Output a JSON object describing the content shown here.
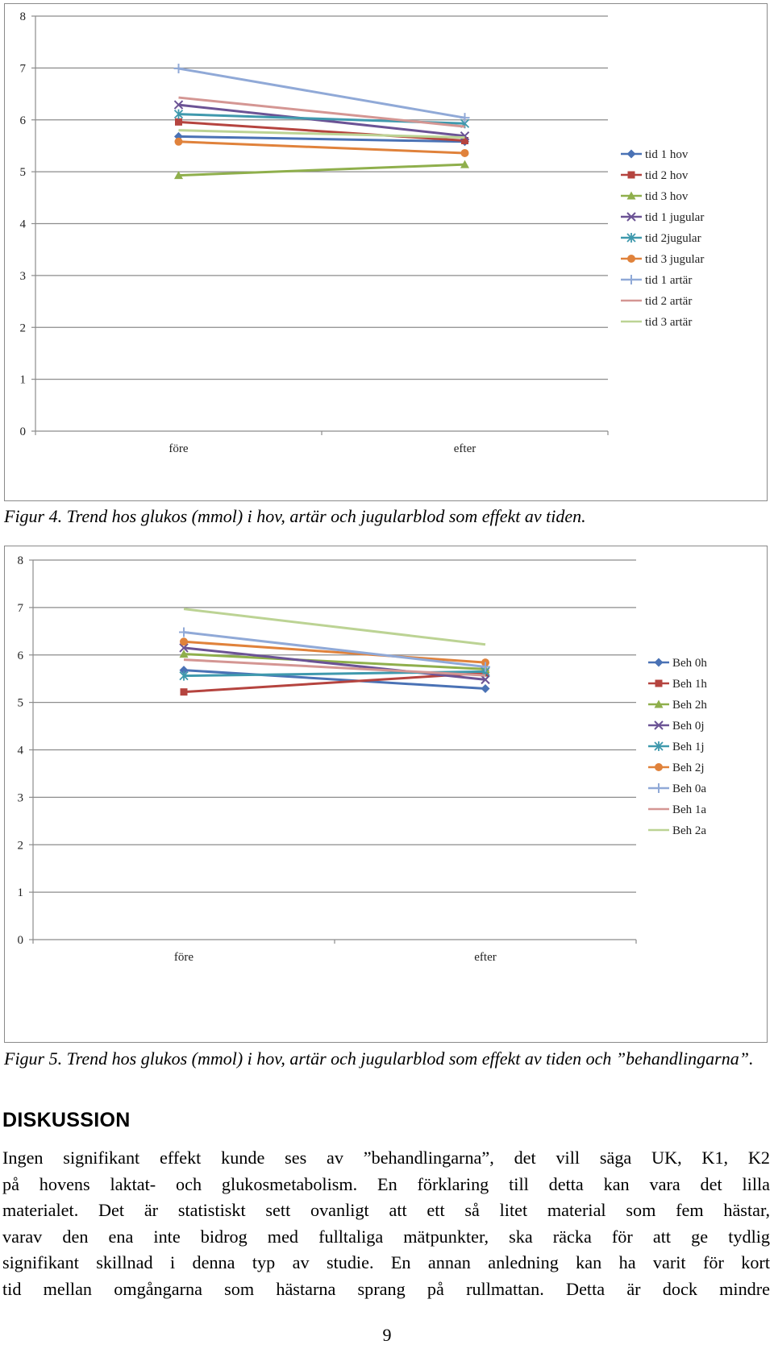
{
  "chart_data": [
    {
      "type": "line",
      "categories": [
        "före",
        "efter"
      ],
      "ylim": [
        0,
        8
      ],
      "yticks": [
        0,
        1,
        2,
        3,
        4,
        5,
        6,
        7,
        8
      ],
      "grid": true,
      "legend_position": "right",
      "series": [
        {
          "name": "tid 1 hov",
          "values": [
            5.68,
            5.58
          ],
          "color": "#4a72b5",
          "marker": "diamond"
        },
        {
          "name": "tid 2 hov",
          "values": [
            5.96,
            5.6
          ],
          "color": "#b5443f",
          "marker": "square"
        },
        {
          "name": "tid 3 hov",
          "values": [
            4.93,
            5.14
          ],
          "color": "#8faf4c",
          "marker": "triangle"
        },
        {
          "name": "tid 1 jugular",
          "values": [
            6.29,
            5.69
          ],
          "color": "#6b5395",
          "marker": "x"
        },
        {
          "name": "tid 2jugular",
          "values": [
            6.11,
            5.93
          ],
          "color": "#3f99ad",
          "marker": "star"
        },
        {
          "name": "tid 3 jugular",
          "values": [
            5.58,
            5.36
          ],
          "color": "#e0823b",
          "marker": "circle"
        },
        {
          "name": "tid 1 artär",
          "values": [
            6.99,
            6.04
          ],
          "color": "#90a9d7",
          "marker": "plus"
        },
        {
          "name": "tid 2 artär",
          "values": [
            6.43,
            5.87
          ],
          "color": "#d49693",
          "marker": "none"
        },
        {
          "name": "tid 3 artär",
          "values": [
            5.8,
            5.66
          ],
          "color": "#bcd394",
          "marker": "none"
        }
      ]
    },
    {
      "type": "line",
      "categories": [
        "före",
        "efter"
      ],
      "ylim": [
        0,
        8
      ],
      "yticks": [
        0,
        1,
        2,
        3,
        4,
        5,
        6,
        7,
        8
      ],
      "grid": true,
      "legend_position": "right",
      "series": [
        {
          "name": "Beh 0h",
          "values": [
            5.68,
            5.29
          ],
          "color": "#4a72b5",
          "marker": "diamond"
        },
        {
          "name": "Beh 1h",
          "values": [
            5.22,
            5.62
          ],
          "color": "#b5443f",
          "marker": "square"
        },
        {
          "name": "Beh 2h",
          "values": [
            6.02,
            5.7
          ],
          "color": "#8faf4c",
          "marker": "triangle"
        },
        {
          "name": "Beh 0j",
          "values": [
            6.15,
            5.48
          ],
          "color": "#6b5395",
          "marker": "x"
        },
        {
          "name": "Beh 1j",
          "values": [
            5.56,
            5.65
          ],
          "color": "#3f99ad",
          "marker": "star"
        },
        {
          "name": "Beh 2j",
          "values": [
            6.28,
            5.84
          ],
          "color": "#e0823b",
          "marker": "circle"
        },
        {
          "name": "Beh 0a",
          "values": [
            6.48,
            5.75
          ],
          "color": "#90a9d7",
          "marker": "plus"
        },
        {
          "name": "Beh 1a",
          "values": [
            5.9,
            5.57
          ],
          "color": "#d49693",
          "marker": "none"
        },
        {
          "name": "Beh 2a",
          "values": [
            6.97,
            6.22
          ],
          "color": "#bcd394",
          "marker": "none"
        }
      ]
    }
  ],
  "captions": {
    "fig4": "Figur 4. Trend hos glukos (mmol) i hov, artär och jugularblod som effekt av tiden.",
    "fig5": "Figur 5. Trend hos glukos (mmol) i hov, artär och jugularblod som effekt av tiden och ”behandlingarna”."
  },
  "section": {
    "heading": "DISKUSSION",
    "lines": [
      "Ingen signifikant effekt kunde ses av ”behandlingarna”, det vill säga UK, K1, K2",
      "på hovens laktat- och glukosmetabolism. En förklaring till detta kan vara det lilla",
      "materialet. Det är statistiskt sett ovanligt att ett så litet material som fem hästar,",
      "varav den ena inte bidrog med fulltaliga mätpunkter, ska räcka för att ge tydlig",
      "signifikant skillnad i denna typ av studie. En annan anledning kan ha varit för kort",
      "tid mellan omgångarna som hästarna sprang på rullmattan. Detta är dock mindre"
    ]
  },
  "page_number": "9"
}
